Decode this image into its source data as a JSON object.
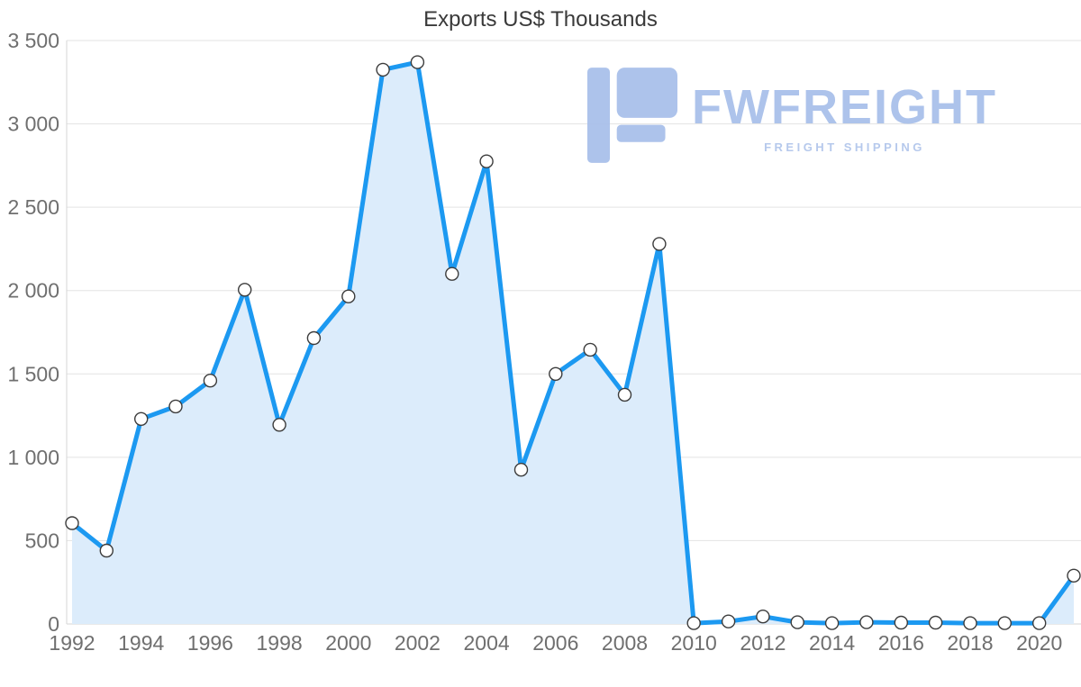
{
  "chart_data": {
    "type": "area",
    "title": "Exports US$ Thousands",
    "xlabel": "",
    "ylabel": "",
    "grid": "horizontal",
    "legend": "none",
    "ylim": [
      0,
      3500
    ],
    "x": [
      1992,
      1993,
      1994,
      1995,
      1996,
      1997,
      1998,
      1999,
      2000,
      2001,
      2002,
      2003,
      2004,
      2005,
      2006,
      2007,
      2008,
      2009,
      2010,
      2011,
      2012,
      2013,
      2014,
      2015,
      2016,
      2017,
      2018,
      2019,
      2020,
      2021
    ],
    "values": [
      605,
      440,
      1230,
      1305,
      1460,
      2005,
      1195,
      1715,
      1965,
      3325,
      3370,
      2100,
      2775,
      925,
      1500,
      1645,
      1375,
      2280,
      5,
      15,
      45,
      10,
      5,
      10,
      8,
      8,
      5,
      5,
      5,
      290
    ],
    "xticks": [
      1992,
      1994,
      1996,
      1998,
      2000,
      2002,
      2004,
      2006,
      2008,
      2010,
      2012,
      2014,
      2016,
      2018,
      2020
    ],
    "yticks": [
      {
        "v": 0,
        "label": "0"
      },
      {
        "v": 500,
        "label": "500"
      },
      {
        "v": 1000,
        "label": "1 000"
      },
      {
        "v": 1500,
        "label": "1 500"
      },
      {
        "v": 2000,
        "label": "2 000"
      },
      {
        "v": 2500,
        "label": "2 500"
      },
      {
        "v": 3000,
        "label": "3 000"
      },
      {
        "v": 3500,
        "label": "3 500"
      }
    ]
  },
  "colors": {
    "line": "#1c99f1",
    "fill": "#dcecfb",
    "marker_fill": "#ffffff",
    "marker_stroke": "#3c3c3c",
    "grid": "#e3e3e3",
    "axis": "#d6d6d6",
    "tick_text": "#6f6f6f",
    "title_text": "#3a3a3a",
    "watermark": "#a9c0ea",
    "watermark_sub": "#b3c7ec"
  },
  "watermark": {
    "brand": "FWFREIGHT",
    "tagline": "FREIGHT SHIPPING"
  }
}
